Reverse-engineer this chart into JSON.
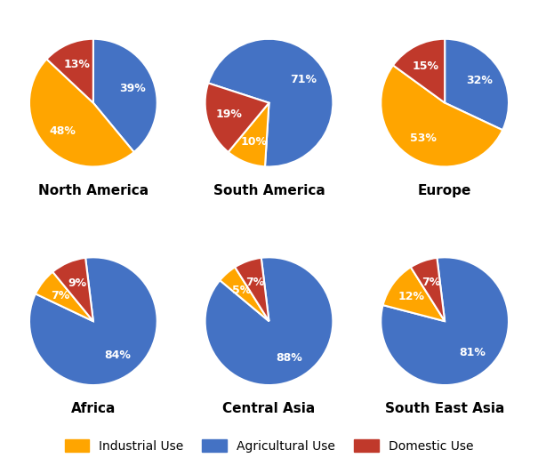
{
  "regions": [
    "North America",
    "South America",
    "Europe",
    "Africa",
    "Central Asia",
    "South East Asia"
  ],
  "data": {
    "North America": {
      "Industrial": 48,
      "Agricultural": 39,
      "Domestic": 13
    },
    "South America": {
      "Industrial": 10,
      "Agricultural": 71,
      "Domestic": 19
    },
    "Europe": {
      "Industrial": 53,
      "Agricultural": 32,
      "Domestic": 15
    },
    "Africa": {
      "Industrial": 7,
      "Agricultural": 84,
      "Domestic": 9
    },
    "Central Asia": {
      "Industrial": 5,
      "Agricultural": 88,
      "Domestic": 7
    },
    "South East Asia": {
      "Industrial": 12,
      "Agricultural": 81,
      "Domestic": 7
    }
  },
  "colors": {
    "Industrial": "#FFA500",
    "Agricultural": "#4472C4",
    "Domestic": "#C0392B"
  },
  "label_order": [
    "Agricultural",
    "Industrial",
    "Domestic"
  ],
  "legend_labels": [
    "Industrial Use",
    "Agricultural Use",
    "Domestic Use"
  ],
  "legend_colors_order": [
    "Industrial",
    "Agricultural",
    "Domestic"
  ],
  "background_color": "#FFFFFF",
  "label_fontsize": 9,
  "title_fontsize": 11,
  "legend_fontsize": 10,
  "startangles": {
    "North America": 90,
    "South America": 162,
    "Europe": 90,
    "Africa": 97,
    "Central Asia": 97,
    "South East Asia": 97
  }
}
